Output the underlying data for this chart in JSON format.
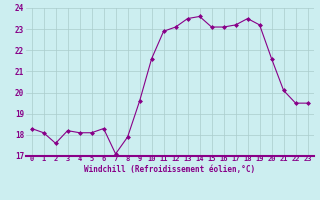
{
  "hours": [
    0,
    1,
    2,
    3,
    4,
    5,
    6,
    7,
    8,
    9,
    10,
    11,
    12,
    13,
    14,
    15,
    16,
    17,
    18,
    19,
    20,
    21,
    22,
    23
  ],
  "values": [
    18.3,
    18.1,
    17.6,
    18.2,
    18.1,
    18.1,
    18.3,
    17.1,
    17.9,
    19.6,
    21.6,
    22.9,
    23.1,
    23.5,
    23.6,
    23.1,
    23.1,
    23.2,
    23.5,
    23.2,
    21.6,
    20.1,
    19.5,
    19.5
  ],
  "ylim": [
    17,
    24
  ],
  "yticks": [
    17,
    18,
    19,
    20,
    21,
    22,
    23,
    24
  ],
  "xtick_labels": [
    "0",
    "1",
    "2",
    "3",
    "4",
    "5",
    "6",
    "7",
    "8",
    "9",
    "10",
    "11",
    "12",
    "13",
    "14",
    "15",
    "16",
    "17",
    "18",
    "19",
    "20",
    "21",
    "22",
    "23"
  ],
  "xlabel": "Windchill (Refroidissement éolien,°C)",
  "line_color": "#880088",
  "marker_color": "#880088",
  "bg_color": "#cceef0",
  "grid_color": "#aacccc",
  "xlabel_color": "#880088",
  "tick_color": "#880088",
  "figsize": [
    3.2,
    2.0
  ],
  "dpi": 100
}
